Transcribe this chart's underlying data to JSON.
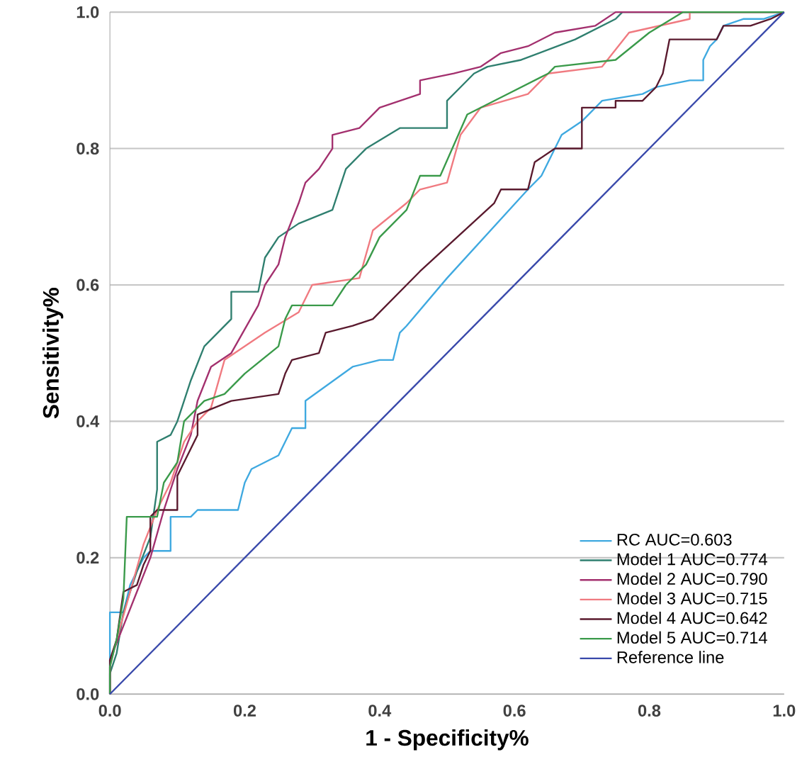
{
  "chart_data": {
    "type": "line",
    "xlabel": "1 - Specificity%",
    "ylabel": "Sensitivity%",
    "xlim": [
      0,
      1
    ],
    "ylim": [
      0,
      1
    ],
    "xticks": [
      {
        "value": 0,
        "label": "0.0"
      },
      {
        "value": 0.2,
        "label": "0.2"
      },
      {
        "value": 0.4,
        "label": "0.4"
      },
      {
        "value": 0.6,
        "label": "0.6"
      },
      {
        "value": 0.8,
        "label": "0.8"
      },
      {
        "value": 1,
        "label": "1.0"
      }
    ],
    "yticks": [
      {
        "value": 0,
        "label": "0.0"
      },
      {
        "value": 0.2,
        "label": "0.2"
      },
      {
        "value": 0.4,
        "label": "0.4"
      },
      {
        "value": 0.6,
        "label": "0.6"
      },
      {
        "value": 0.8,
        "label": "0.8"
      },
      {
        "value": 1,
        "label": "1.0"
      }
    ],
    "grid": "y",
    "legend": "bottom right",
    "line_style": "solid",
    "series": [
      {
        "name": "RC AUC=0.603",
        "color": "#3fa9e0",
        "x": [
          0,
          0,
          0.02,
          0.03,
          0.05,
          0.06,
          0.09,
          0.09,
          0.12,
          0.13,
          0.19,
          0.2,
          0.21,
          0.25,
          0.27,
          0.29,
          0.29,
          0.36,
          0.4,
          0.42,
          0.43,
          0.44,
          0.5,
          0.62,
          0.64,
          0.67,
          0.7,
          0.72,
          0.73,
          0.79,
          0.81,
          0.86,
          0.88,
          0.88,
          0.89,
          0.9,
          0.91,
          0.94,
          0.97,
          1
        ],
        "values": [
          0,
          0.12,
          0.12,
          0.16,
          0.2,
          0.21,
          0.21,
          0.26,
          0.26,
          0.27,
          0.27,
          0.31,
          0.33,
          0.35,
          0.39,
          0.39,
          0.43,
          0.48,
          0.49,
          0.49,
          0.53,
          0.54,
          0.61,
          0.74,
          0.76,
          0.82,
          0.84,
          0.86,
          0.87,
          0.88,
          0.89,
          0.9,
          0.9,
          0.93,
          0.95,
          0.96,
          0.98,
          0.99,
          0.99,
          1
        ]
      },
      {
        "name": "Model 1 AUC=0.774",
        "color": "#2f7f6f",
        "x": [
          0,
          0,
          0.01,
          0.02,
          0.04,
          0.06,
          0.07,
          0.07,
          0.09,
          0.1,
          0.12,
          0.14,
          0.18,
          0.18,
          0.22,
          0.23,
          0.25,
          0.28,
          0.33,
          0.35,
          0.38,
          0.43,
          0.5,
          0.5,
          0.52,
          0.54,
          0.56,
          0.61,
          0.69,
          0.75,
          0.76,
          1
        ],
        "values": [
          0,
          0.03,
          0.06,
          0.12,
          0.18,
          0.23,
          0.3,
          0.37,
          0.38,
          0.4,
          0.46,
          0.51,
          0.55,
          0.59,
          0.59,
          0.64,
          0.67,
          0.69,
          0.71,
          0.77,
          0.8,
          0.83,
          0.83,
          0.87,
          0.89,
          0.91,
          0.92,
          0.93,
          0.96,
          0.99,
          1,
          1
        ]
      },
      {
        "name": "Model 2 AUC=0.790",
        "color": "#a3306e",
        "x": [
          0,
          0,
          0.02,
          0.04,
          0.06,
          0.08,
          0.1,
          0.12,
          0.13,
          0.15,
          0.18,
          0.22,
          0.23,
          0.25,
          0.26,
          0.28,
          0.29,
          0.31,
          0.33,
          0.33,
          0.37,
          0.4,
          0.46,
          0.46,
          0.51,
          0.55,
          0.58,
          0.62,
          0.66,
          0.72,
          0.75,
          1
        ],
        "values": [
          0,
          0.05,
          0.1,
          0.15,
          0.2,
          0.27,
          0.33,
          0.38,
          0.43,
          0.48,
          0.5,
          0.57,
          0.6,
          0.63,
          0.67,
          0.72,
          0.75,
          0.77,
          0.8,
          0.82,
          0.83,
          0.86,
          0.88,
          0.9,
          0.91,
          0.92,
          0.94,
          0.95,
          0.97,
          0.98,
          1,
          1
        ]
      },
      {
        "name": "Model 3 AUC=0.715",
        "color": "#f07a80",
        "x": [
          0,
          0,
          0.01,
          0.03,
          0.05,
          0.07,
          0.09,
          0.11,
          0.13,
          0.15,
          0.17,
          0.23,
          0.28,
          0.3,
          0.37,
          0.39,
          0.44,
          0.46,
          0.5,
          0.52,
          0.55,
          0.62,
          0.65,
          0.73,
          0.77,
          0.86,
          0.86,
          1
        ],
        "values": [
          0,
          0.04,
          0.08,
          0.15,
          0.22,
          0.27,
          0.31,
          0.37,
          0.4,
          0.42,
          0.49,
          0.53,
          0.56,
          0.6,
          0.61,
          0.68,
          0.72,
          0.74,
          0.75,
          0.82,
          0.86,
          0.88,
          0.91,
          0.92,
          0.97,
          0.99,
          1,
          1
        ]
      },
      {
        "name": "Model 4 AUC=0.642",
        "color": "#5a1a2e",
        "x": [
          0,
          0,
          0.01,
          0.02,
          0.04,
          0.05,
          0.06,
          0.06,
          0.07,
          0.1,
          0.1,
          0.13,
          0.13,
          0.18,
          0.25,
          0.26,
          0.27,
          0.31,
          0.32,
          0.36,
          0.39,
          0.46,
          0.57,
          0.58,
          0.62,
          0.63,
          0.66,
          0.7,
          0.7,
          0.75,
          0.75,
          0.79,
          0.81,
          0.82,
          0.83,
          0.9,
          0.91,
          0.95,
          0.98,
          1
        ],
        "values": [
          0,
          0.05,
          0.08,
          0.15,
          0.16,
          0.19,
          0.21,
          0.26,
          0.27,
          0.27,
          0.32,
          0.38,
          0.41,
          0.43,
          0.44,
          0.47,
          0.49,
          0.5,
          0.53,
          0.54,
          0.55,
          0.62,
          0.72,
          0.74,
          0.74,
          0.78,
          0.8,
          0.8,
          0.86,
          0.86,
          0.87,
          0.87,
          0.89,
          0.91,
          0.96,
          0.96,
          0.98,
          0.98,
          0.99,
          1
        ]
      },
      {
        "name": "Model 5 AUC=0.714",
        "color": "#3a9a4a",
        "x": [
          0,
          0,
          0.01,
          0.02,
          0.025,
          0.07,
          0.08,
          0.1,
          0.11,
          0.14,
          0.17,
          0.2,
          0.25,
          0.26,
          0.27,
          0.33,
          0.35,
          0.38,
          0.4,
          0.44,
          0.46,
          0.49,
          0.53,
          0.57,
          0.65,
          0.66,
          0.75,
          0.8,
          0.85,
          1
        ],
        "values": [
          0,
          0.04,
          0.08,
          0.14,
          0.26,
          0.26,
          0.31,
          0.34,
          0.4,
          0.43,
          0.44,
          0.47,
          0.51,
          0.55,
          0.57,
          0.57,
          0.6,
          0.63,
          0.67,
          0.71,
          0.76,
          0.76,
          0.85,
          0.87,
          0.91,
          0.92,
          0.93,
          0.97,
          1,
          1
        ]
      },
      {
        "name": "Reference line",
        "color": "#3949ab",
        "x": [
          0,
          1
        ],
        "values": [
          0,
          1
        ]
      }
    ]
  }
}
